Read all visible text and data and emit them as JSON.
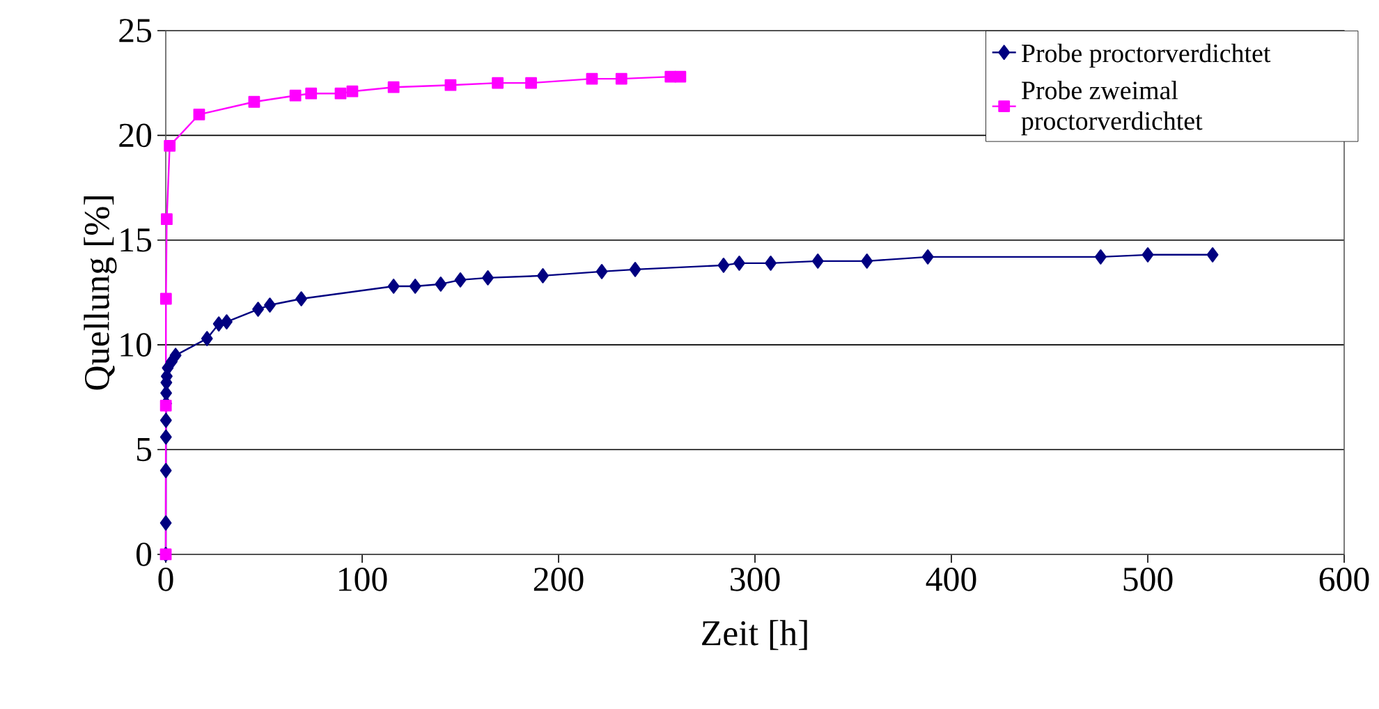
{
  "chart_data": {
    "type": "line",
    "xlabel": "Zeit [h]",
    "ylabel": "Quellung [%]",
    "xlim": [
      0,
      600
    ],
    "xticks": [
      0,
      100,
      200,
      300,
      400,
      500,
      600
    ],
    "ylim": [
      0,
      25
    ],
    "yticks": [
      0,
      5,
      10,
      15,
      20,
      25
    ],
    "grid": "y",
    "legend": "top right",
    "line_style": "solid",
    "series": [
      {
        "name": "Probe proctorverdichtet",
        "color": "#000080",
        "marker": "diamond",
        "x": [
          0,
          0.02,
          0.05,
          0.08,
          0.1,
          0.15,
          0.2,
          0.3,
          0.5,
          1,
          3,
          5,
          21,
          27,
          31,
          47,
          53,
          69,
          116,
          127,
          140,
          150,
          164,
          192,
          222,
          239,
          284,
          292,
          308,
          332,
          357,
          388,
          476,
          500,
          533
        ],
        "values": [
          0,
          1.5,
          4,
          5.6,
          6.4,
          7.2,
          7.7,
          8.2,
          8.5,
          8.9,
          9.2,
          9.5,
          10.3,
          11.0,
          11.1,
          11.7,
          11.9,
          12.2,
          12.8,
          12.8,
          12.9,
          13.1,
          13.2,
          13.3,
          13.5,
          13.6,
          13.8,
          13.9,
          13.9,
          14.0,
          14.0,
          14.2,
          14.2,
          14.3,
          14.3
        ]
      },
      {
        "name": "Probe zweimal proctorverdichtet",
        "color": "#ff00ff",
        "marker": "square",
        "x": [
          0,
          0.05,
          0.1,
          0.5,
          2,
          17,
          45,
          66,
          74,
          89,
          95,
          116,
          145,
          169,
          186,
          217,
          232,
          257,
          262
        ],
        "values": [
          0,
          7.1,
          12.2,
          16.0,
          19.5,
          21.0,
          21.6,
          21.9,
          22.0,
          22.0,
          22.1,
          22.3,
          22.4,
          22.5,
          22.5,
          22.7,
          22.7,
          22.8,
          22.8
        ]
      }
    ]
  }
}
